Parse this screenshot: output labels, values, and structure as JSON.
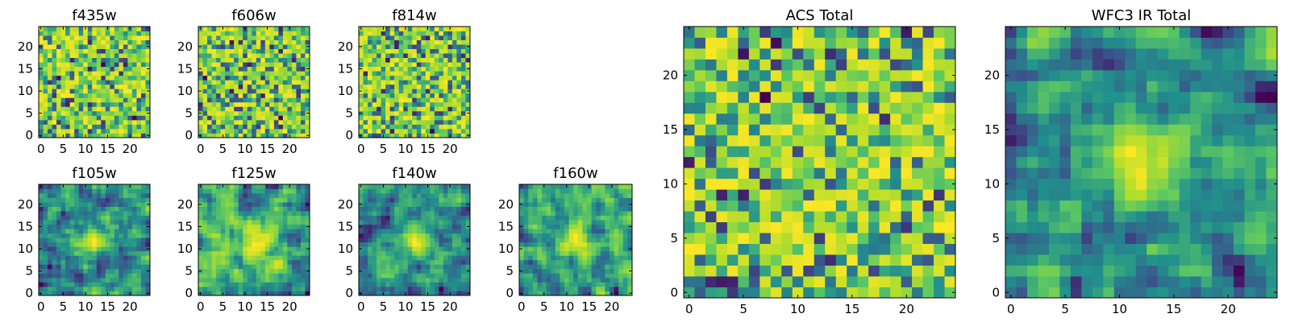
{
  "colormap": {
    "name": "viridis",
    "stops": [
      "#440154",
      "#3b528b",
      "#21918c",
      "#5ec962",
      "#b5de2b",
      "#fde725"
    ],
    "data_range": [
      0,
      1
    ]
  },
  "chart_data": [
    {
      "type": "heatmap",
      "title": "f435w",
      "rows": 25,
      "cols": 25,
      "xticks": [
        0,
        5,
        10,
        15,
        20
      ],
      "yticks": [
        0,
        5,
        10,
        15,
        20
      ],
      "seed": 11,
      "pattern": "noise_fine",
      "origin": "lower",
      "cmap": "viridis"
    },
    {
      "type": "heatmap",
      "title": "f606w",
      "rows": 25,
      "cols": 25,
      "xticks": [
        0,
        5,
        10,
        15,
        20
      ],
      "yticks": [
        0,
        5,
        10,
        15,
        20
      ],
      "seed": 23,
      "pattern": "noise_fine",
      "origin": "lower",
      "cmap": "viridis"
    },
    {
      "type": "heatmap",
      "title": "f814w",
      "rows": 25,
      "cols": 25,
      "xticks": [
        0,
        5,
        10,
        15,
        20
      ],
      "yticks": [
        0,
        5,
        10,
        15,
        20
      ],
      "seed": 37,
      "pattern": "noise_fine",
      "origin": "lower",
      "cmap": "viridis"
    },
    {
      "type": "heatmap",
      "title": "f105w",
      "rows": 25,
      "cols": 25,
      "xticks": [
        0,
        5,
        10,
        15,
        20
      ],
      "yticks": [
        0,
        5,
        10,
        15,
        20
      ],
      "seed": 41,
      "pattern": "smooth_source",
      "source_center": [
        12,
        12
      ],
      "origin": "lower",
      "cmap": "viridis"
    },
    {
      "type": "heatmap",
      "title": "f125w",
      "rows": 25,
      "cols": 25,
      "xticks": [
        0,
        5,
        10,
        15,
        20
      ],
      "yticks": [
        0,
        5,
        10,
        15,
        20
      ],
      "seed": 53,
      "pattern": "smooth_source",
      "source_center": [
        13,
        11
      ],
      "origin": "lower",
      "cmap": "viridis"
    },
    {
      "type": "heatmap",
      "title": "f140w",
      "rows": 25,
      "cols": 25,
      "xticks": [
        0,
        5,
        10,
        15,
        20
      ],
      "yticks": [
        0,
        5,
        10,
        15,
        20
      ],
      "seed": 67,
      "pattern": "smooth_source",
      "source_center": [
        12,
        12
      ],
      "origin": "lower",
      "cmap": "viridis"
    },
    {
      "type": "heatmap",
      "title": "f160w",
      "rows": 25,
      "cols": 25,
      "xticks": [
        0,
        5,
        10,
        15,
        20
      ],
      "yticks": [
        0,
        5,
        10,
        15,
        20
      ],
      "seed": 79,
      "pattern": "smooth_source",
      "source_center": [
        12,
        12
      ],
      "origin": "lower",
      "cmap": "viridis"
    },
    {
      "type": "heatmap",
      "title": "ACS Total",
      "rows": 25,
      "cols": 25,
      "xticks": [
        0,
        5,
        10,
        15,
        20
      ],
      "yticks": [
        0,
        5,
        10,
        15,
        20
      ],
      "seed": 97,
      "pattern": "noise_coarse",
      "origin": "lower",
      "cmap": "viridis"
    },
    {
      "type": "heatmap",
      "title": "WFC3 IR Total",
      "rows": 25,
      "cols": 25,
      "xticks": [
        0,
        5,
        10,
        15,
        20
      ],
      "yticks": [
        0,
        5,
        10,
        15,
        20
      ],
      "seed": 113,
      "pattern": "smooth_source",
      "source_center": [
        12,
        12
      ],
      "origin": "lower",
      "cmap": "viridis"
    }
  ]
}
